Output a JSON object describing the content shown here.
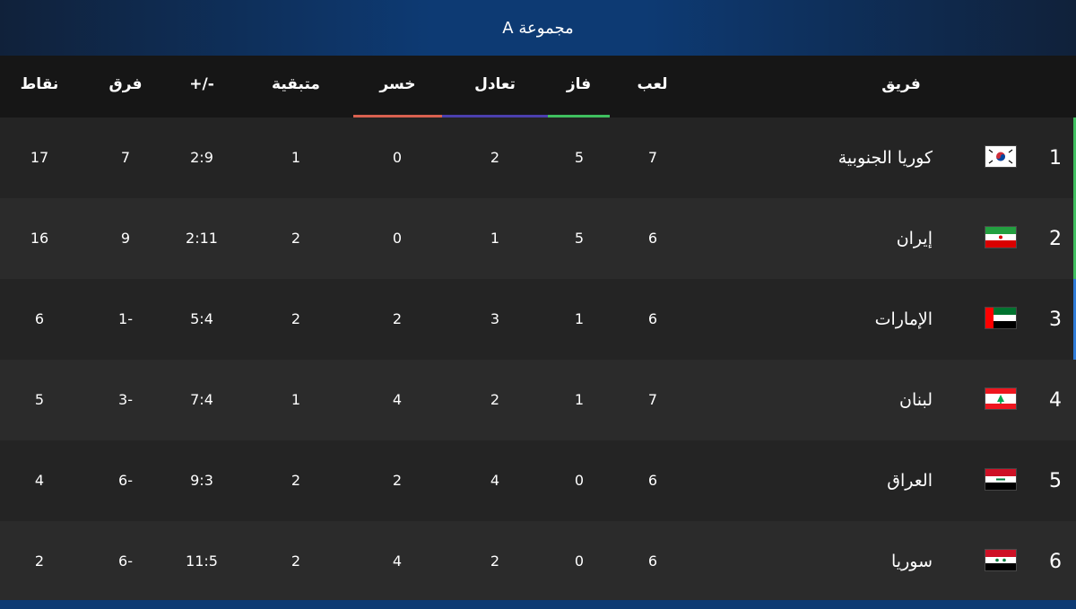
{
  "group_title": "مجموعة A",
  "columns": {
    "team": "فريق",
    "played": "لعب",
    "won": "فاز",
    "drawn": "تعادل",
    "lost": "خسر",
    "remaining": "متبقية",
    "goals": "+/-",
    "diff": "فرق",
    "points": "نقاط"
  },
  "colors": {
    "won_line": "#3fbf5f",
    "drawn_line": "#4b3fae",
    "lost_line": "#d9604f",
    "qualify_marker": "#3fbf5f",
    "playoff_marker": "#2e7bd8"
  },
  "rows": [
    {
      "rank": "1",
      "team": "كوريا الجنوبية",
      "flag": "south-korea-flag",
      "played": "7",
      "won": "5",
      "drawn": "2",
      "lost": "0",
      "remaining": "1",
      "goals": "2:9",
      "diff": "7",
      "points": "17"
    },
    {
      "rank": "2",
      "team": "إيران",
      "flag": "iran-flag",
      "played": "6",
      "won": "5",
      "drawn": "1",
      "lost": "0",
      "remaining": "2",
      "goals": "2:11",
      "diff": "9",
      "points": "16"
    },
    {
      "rank": "3",
      "team": "الإمارات",
      "flag": "uae-flag",
      "played": "6",
      "won": "1",
      "drawn": "3",
      "lost": "2",
      "remaining": "2",
      "goals": "5:4",
      "diff": "1-",
      "points": "6"
    },
    {
      "rank": "4",
      "team": "لبنان",
      "flag": "lebanon-flag",
      "played": "7",
      "won": "1",
      "drawn": "2",
      "lost": "4",
      "remaining": "1",
      "goals": "7:4",
      "diff": "3-",
      "points": "5"
    },
    {
      "rank": "5",
      "team": "العراق",
      "flag": "iraq-flag",
      "played": "6",
      "won": "0",
      "drawn": "4",
      "lost": "2",
      "remaining": "2",
      "goals": "9:3",
      "diff": "6-",
      "points": "4"
    },
    {
      "rank": "6",
      "team": "سوريا",
      "flag": "syria-flag",
      "played": "6",
      "won": "0",
      "drawn": "2",
      "lost": "4",
      "remaining": "2",
      "goals": "11:5",
      "diff": "6-",
      "points": "2"
    }
  ]
}
